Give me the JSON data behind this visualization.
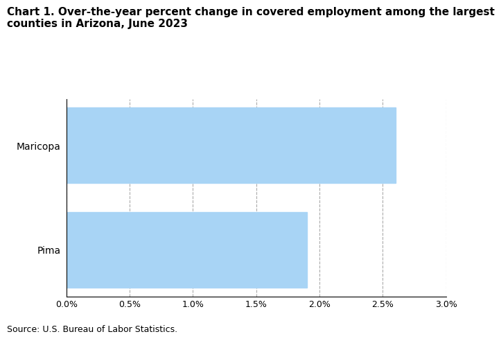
{
  "title_line1": "Chart 1. Over-the-year percent change in covered employment among the largest",
  "title_line2": "counties in Arizona, June 2023",
  "categories": [
    "Pima",
    "Maricopa"
  ],
  "values": [
    0.019,
    0.026
  ],
  "bar_color": "#a8d4f5",
  "xlim": [
    0,
    0.03
  ],
  "xticks": [
    0.0,
    0.005,
    0.01,
    0.015,
    0.02,
    0.025,
    0.03
  ],
  "xtick_labels": [
    "0.0%",
    "0.5%",
    "1.0%",
    "1.5%",
    "2.0%",
    "2.5%",
    "3.0%"
  ],
  "source_text": "Source: U.S. Bureau of Labor Statistics.",
  "grid_color": "#aaaaaa",
  "title_fontsize": 11,
  "tick_fontsize": 9,
  "ylabel_fontsize": 10,
  "source_fontsize": 9,
  "background_color": "#ffffff",
  "bar_height": 0.72
}
